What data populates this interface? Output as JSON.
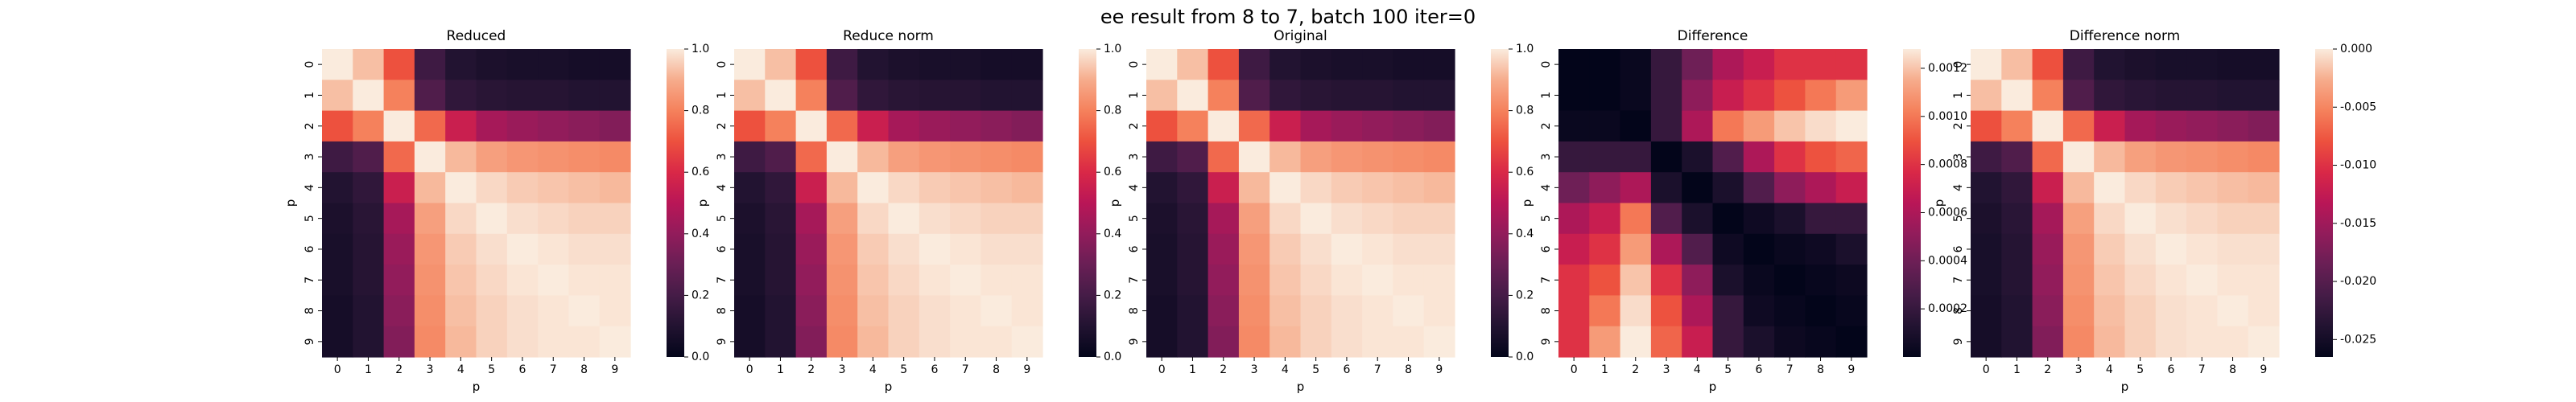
{
  "figure": {
    "suptitle": "ee result from 8 to 7, batch 100 iter=0"
  },
  "chart_data": [
    {
      "type": "heatmap",
      "title": "Reduced",
      "xlabel": "p",
      "ylabel": "p",
      "x_ticks": [
        "0",
        "1",
        "2",
        "3",
        "4",
        "5",
        "6",
        "7",
        "8",
        "9"
      ],
      "y_ticks": [
        "0",
        "1",
        "2",
        "3",
        "4",
        "5",
        "6",
        "7",
        "8",
        "9"
      ],
      "colorbar": {
        "range": [
          0,
          1
        ],
        "ticks": [
          "0.0",
          "0.2",
          "0.4",
          "0.6",
          "0.8",
          "1.0"
        ],
        "tick_values": [
          0,
          0.2,
          0.4,
          0.6,
          0.8,
          1.0
        ]
      },
      "values": [
        [
          1.0,
          0.93,
          0.7,
          0.18,
          0.1,
          0.08,
          0.07,
          0.07,
          0.06,
          0.06
        ],
        [
          0.93,
          1.0,
          0.8,
          0.23,
          0.14,
          0.12,
          0.11,
          0.11,
          0.1,
          0.1
        ],
        [
          0.7,
          0.8,
          1.0,
          0.75,
          0.55,
          0.45,
          0.42,
          0.4,
          0.38,
          0.36
        ],
        [
          0.18,
          0.23,
          0.75,
          1.0,
          0.92,
          0.87,
          0.85,
          0.84,
          0.83,
          0.82
        ],
        [
          0.1,
          0.14,
          0.55,
          0.92,
          1.0,
          0.97,
          0.95,
          0.94,
          0.93,
          0.92
        ],
        [
          0.08,
          0.12,
          0.45,
          0.87,
          0.97,
          1.0,
          0.98,
          0.97,
          0.96,
          0.96
        ],
        [
          0.07,
          0.11,
          0.42,
          0.85,
          0.95,
          0.98,
          1.0,
          0.99,
          0.98,
          0.98
        ],
        [
          0.07,
          0.11,
          0.4,
          0.84,
          0.94,
          0.97,
          0.99,
          1.0,
          0.99,
          0.99
        ],
        [
          0.06,
          0.1,
          0.38,
          0.83,
          0.93,
          0.96,
          0.98,
          0.99,
          1.0,
          0.99
        ],
        [
          0.06,
          0.1,
          0.36,
          0.82,
          0.92,
          0.96,
          0.98,
          0.99,
          0.99,
          1.0
        ]
      ]
    },
    {
      "type": "heatmap",
      "title": "Reduce norm",
      "xlabel": "p",
      "ylabel": "p",
      "x_ticks": [
        "0",
        "1",
        "2",
        "3",
        "4",
        "5",
        "6",
        "7",
        "8",
        "9"
      ],
      "y_ticks": [
        "0",
        "1",
        "2",
        "3",
        "4",
        "5",
        "6",
        "7",
        "8",
        "9"
      ],
      "colorbar": {
        "range": [
          0,
          1
        ],
        "ticks": [
          "0.0",
          "0.2",
          "0.4",
          "0.6",
          "0.8",
          "1.0"
        ],
        "tick_values": [
          0,
          0.2,
          0.4,
          0.6,
          0.8,
          1.0
        ]
      },
      "values": [
        [
          1.0,
          0.93,
          0.7,
          0.18,
          0.1,
          0.08,
          0.07,
          0.07,
          0.06,
          0.06
        ],
        [
          0.93,
          1.0,
          0.8,
          0.23,
          0.14,
          0.12,
          0.11,
          0.11,
          0.1,
          0.1
        ],
        [
          0.7,
          0.8,
          1.0,
          0.75,
          0.55,
          0.45,
          0.42,
          0.4,
          0.38,
          0.36
        ],
        [
          0.18,
          0.23,
          0.75,
          1.0,
          0.92,
          0.87,
          0.85,
          0.84,
          0.83,
          0.82
        ],
        [
          0.1,
          0.14,
          0.55,
          0.92,
          1.0,
          0.97,
          0.95,
          0.94,
          0.93,
          0.92
        ],
        [
          0.08,
          0.12,
          0.45,
          0.87,
          0.97,
          1.0,
          0.98,
          0.97,
          0.96,
          0.96
        ],
        [
          0.07,
          0.11,
          0.42,
          0.85,
          0.95,
          0.98,
          1.0,
          0.99,
          0.98,
          0.98
        ],
        [
          0.07,
          0.11,
          0.4,
          0.84,
          0.94,
          0.97,
          0.99,
          1.0,
          0.99,
          0.99
        ],
        [
          0.06,
          0.1,
          0.38,
          0.83,
          0.93,
          0.96,
          0.98,
          0.99,
          1.0,
          0.99
        ],
        [
          0.06,
          0.1,
          0.36,
          0.82,
          0.92,
          0.96,
          0.98,
          0.99,
          0.99,
          1.0
        ]
      ]
    },
    {
      "type": "heatmap",
      "title": "Original",
      "xlabel": "p",
      "ylabel": "p",
      "x_ticks": [
        "0",
        "1",
        "2",
        "3",
        "4",
        "5",
        "6",
        "7",
        "8",
        "9"
      ],
      "y_ticks": [
        "0",
        "1",
        "2",
        "3",
        "4",
        "5",
        "6",
        "7",
        "8",
        "9"
      ],
      "colorbar": {
        "range": [
          0,
          1
        ],
        "ticks": [
          "0.0",
          "0.2",
          "0.4",
          "0.6",
          "0.8",
          "1.0"
        ],
        "tick_values": [
          0,
          0.2,
          0.4,
          0.6,
          0.8,
          1.0
        ]
      },
      "values": [
        [
          1.0,
          0.93,
          0.7,
          0.18,
          0.1,
          0.08,
          0.07,
          0.07,
          0.06,
          0.06
        ],
        [
          0.93,
          1.0,
          0.8,
          0.23,
          0.14,
          0.12,
          0.11,
          0.11,
          0.1,
          0.1
        ],
        [
          0.7,
          0.8,
          1.0,
          0.75,
          0.55,
          0.45,
          0.42,
          0.4,
          0.38,
          0.36
        ],
        [
          0.18,
          0.23,
          0.75,
          1.0,
          0.92,
          0.87,
          0.85,
          0.84,
          0.83,
          0.82
        ],
        [
          0.1,
          0.14,
          0.55,
          0.92,
          1.0,
          0.97,
          0.95,
          0.94,
          0.93,
          0.92
        ],
        [
          0.08,
          0.12,
          0.45,
          0.87,
          0.97,
          1.0,
          0.98,
          0.97,
          0.96,
          0.96
        ],
        [
          0.07,
          0.11,
          0.42,
          0.85,
          0.95,
          0.98,
          1.0,
          0.99,
          0.98,
          0.98
        ],
        [
          0.07,
          0.11,
          0.4,
          0.84,
          0.94,
          0.97,
          0.99,
          1.0,
          0.99,
          0.99
        ],
        [
          0.06,
          0.1,
          0.38,
          0.83,
          0.93,
          0.96,
          0.98,
          0.99,
          1.0,
          0.99
        ],
        [
          0.06,
          0.1,
          0.36,
          0.82,
          0.92,
          0.96,
          0.98,
          0.99,
          0.99,
          1.0
        ]
      ]
    },
    {
      "type": "heatmap",
      "title": "Difference",
      "xlabel": "p",
      "ylabel": "p",
      "x_ticks": [
        "0",
        "1",
        "2",
        "3",
        "4",
        "5",
        "6",
        "7",
        "8",
        "9"
      ],
      "y_ticks": [
        "0",
        "1",
        "2",
        "3",
        "4",
        "5",
        "6",
        "7",
        "8",
        "9"
      ],
      "colorbar": {
        "range": [
          0.0,
          0.00128
        ],
        "ticks": [
          "0.0002",
          "0.0004",
          "0.0006",
          "0.0008",
          "0.0010",
          "0.0012"
        ],
        "tick_values": [
          0.0002,
          0.0004,
          0.0006,
          0.0008,
          0.001,
          0.0012
        ]
      },
      "values": [
        [
          0.0,
          0.0,
          3e-05,
          0.0002,
          0.0004,
          0.0006,
          0.0007,
          0.0008,
          0.0008,
          0.0008
        ],
        [
          0.0,
          0.0,
          3e-05,
          0.0002,
          0.0005,
          0.0007,
          0.0008,
          0.0009,
          0.001,
          0.0011
        ],
        [
          3e-05,
          3e-05,
          0.0,
          0.0002,
          0.0006,
          0.001,
          0.0011,
          0.0012,
          0.00125,
          0.00128
        ],
        [
          0.0002,
          0.0002,
          0.0002,
          0.0,
          0.0001,
          0.0003,
          0.0006,
          0.0008,
          0.0009,
          0.00095
        ],
        [
          0.0004,
          0.0005,
          0.0006,
          0.0001,
          0.0,
          0.0001,
          0.0003,
          0.0005,
          0.0006,
          0.0007
        ],
        [
          0.0006,
          0.0007,
          0.001,
          0.0003,
          0.0001,
          0.0,
          5e-05,
          0.0001,
          0.0002,
          0.0002
        ],
        [
          0.0007,
          0.0008,
          0.0011,
          0.0006,
          0.0003,
          5e-05,
          0.0,
          3e-05,
          5e-05,
          0.0001
        ],
        [
          0.0008,
          0.0009,
          0.0012,
          0.0008,
          0.0005,
          0.0001,
          3e-05,
          0.0,
          2e-05,
          4e-05
        ],
        [
          0.0008,
          0.001,
          0.00125,
          0.0009,
          0.0006,
          0.0002,
          5e-05,
          2e-05,
          0.0,
          2e-05
        ],
        [
          0.0008,
          0.0011,
          0.00128,
          0.00095,
          0.0007,
          0.0002,
          0.0001,
          4e-05,
          2e-05,
          0.0
        ]
      ]
    },
    {
      "type": "heatmap",
      "title": "Difference norm",
      "xlabel": "p",
      "ylabel": "p",
      "x_ticks": [
        "0",
        "1",
        "2",
        "3",
        "4",
        "5",
        "6",
        "7",
        "8",
        "9"
      ],
      "y_ticks": [
        "0",
        "1",
        "2",
        "3",
        "4",
        "5",
        "6",
        "7",
        "8",
        "9"
      ],
      "colorbar": {
        "range": [
          -0.0265,
          0.0
        ],
        "ticks": [
          "-0.025",
          "-0.020",
          "-0.015",
          "-0.010",
          "-0.005",
          "0.000"
        ],
        "tick_values": [
          -0.025,
          -0.02,
          -0.015,
          -0.01,
          -0.005,
          0.0
        ]
      },
      "values": [
        [
          0.0,
          -0.0019,
          -0.008,
          -0.0217,
          -0.0239,
          -0.0244,
          -0.0247,
          -0.0247,
          -0.0249,
          -0.0249
        ],
        [
          -0.0019,
          0.0,
          -0.0053,
          -0.0204,
          -0.0228,
          -0.0233,
          -0.0236,
          -0.0236,
          -0.0239,
          -0.0239
        ],
        [
          -0.008,
          -0.0053,
          0.0,
          -0.0066,
          -0.0119,
          -0.0146,
          -0.0154,
          -0.0159,
          -0.0164,
          -0.017
        ],
        [
          -0.0217,
          -0.0204,
          -0.0066,
          0.0,
          -0.0021,
          -0.0034,
          -0.004,
          -0.0042,
          -0.0045,
          -0.0048
        ],
        [
          -0.0239,
          -0.0228,
          -0.0119,
          -0.0021,
          0.0,
          -0.0008,
          -0.0013,
          -0.0016,
          -0.0019,
          -0.0021
        ],
        [
          -0.0244,
          -0.0233,
          -0.0146,
          -0.0034,
          -0.0008,
          0.0,
          -0.0005,
          -0.0008,
          -0.0011,
          -0.0011
        ],
        [
          -0.0247,
          -0.0236,
          -0.0154,
          -0.004,
          -0.0013,
          -0.0005,
          0.0,
          -0.0003,
          -0.0005,
          -0.0005
        ],
        [
          -0.0247,
          -0.0236,
          -0.0159,
          -0.0042,
          -0.0016,
          -0.0008,
          -0.0003,
          0.0,
          -0.0003,
          -0.0003
        ],
        [
          -0.0249,
          -0.0239,
          -0.0164,
          -0.0045,
          -0.0019,
          -0.0011,
          -0.0005,
          -0.0003,
          0.0,
          -0.0003
        ],
        [
          -0.0249,
          -0.0239,
          -0.017,
          -0.0048,
          -0.0021,
          -0.0011,
          -0.0005,
          -0.0003,
          -0.0003,
          0.0
        ]
      ]
    }
  ]
}
